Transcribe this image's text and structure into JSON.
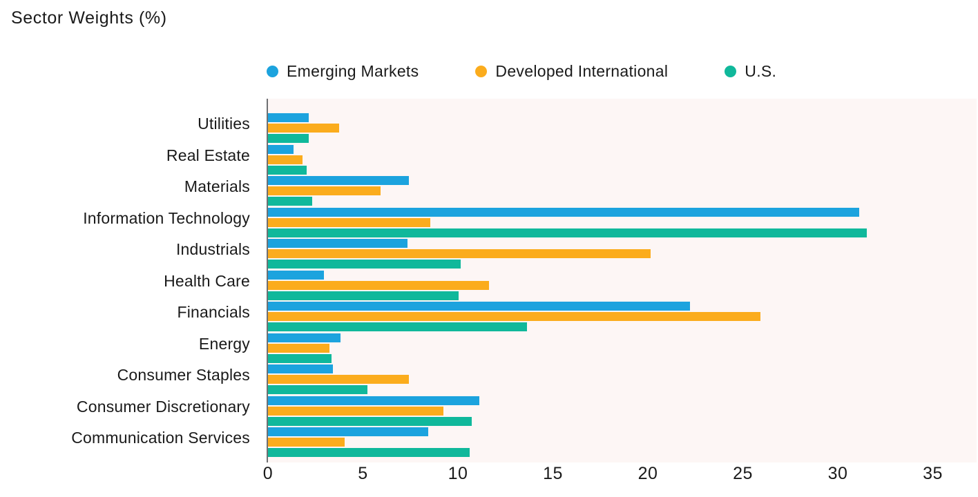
{
  "chart_data": {
    "type": "bar",
    "orientation": "horizontal",
    "title": "Sector Weights (%)",
    "xlabel": "",
    "ylabel": "",
    "categories": [
      "Utilities",
      "Real Estate",
      "Materials",
      "Information Technology",
      "Industrials",
      "Health Care",
      "Financials",
      "Energy",
      "Consumer Staples",
      "Consumer Discretionary",
      "Communication Services"
    ],
    "series": [
      {
        "name": "Emerging Markets",
        "color": "#1CA3DE",
        "values": [
          2.2,
          1.4,
          7.5,
          31.2,
          7.4,
          3.0,
          22.3,
          3.9,
          3.5,
          11.2,
          8.5
        ]
      },
      {
        "name": "Developed International",
        "color": "#FBAC1D",
        "values": [
          3.8,
          1.9,
          6.0,
          8.6,
          20.2,
          11.7,
          26.0,
          3.3,
          7.5,
          9.3,
          4.1
        ]
      },
      {
        "name": "U.S.",
        "color": "#10B89B",
        "values": [
          2.2,
          2.1,
          2.4,
          31.6,
          10.2,
          10.1,
          13.7,
          3.4,
          5.3,
          10.8,
          10.7
        ]
      }
    ],
    "x_ticks": [
      0,
      5,
      10,
      15,
      20,
      25,
      30,
      35
    ],
    "xlim": [
      0,
      37.3
    ],
    "grid": false,
    "legend_position": "top",
    "plot_background": "#FDF6F5",
    "axis_line_color": "#6E6F72",
    "text_color": "#1A1A1A"
  }
}
